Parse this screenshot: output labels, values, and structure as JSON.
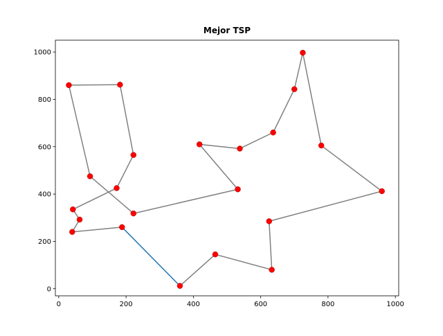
{
  "chart_data": {
    "type": "scatter",
    "title": "Mejor TSP",
    "xlabel": "",
    "ylabel": "",
    "xlim": [
      -10,
      1010
    ],
    "ylim": [
      -30,
      1050
    ],
    "xticks": [
      0,
      200,
      400,
      600,
      800,
      1000
    ],
    "yticks": [
      0,
      200,
      400,
      600,
      800,
      1000
    ],
    "xtick_labels": [
      "0",
      "200",
      "400",
      "600",
      "800",
      "1000"
    ],
    "ytick_labels": [
      "0",
      "200",
      "400",
      "600",
      "800",
      "1000"
    ],
    "grid": false,
    "points": [
      {
        "x": 30,
        "y": 860
      },
      {
        "x": 182,
        "y": 862
      },
      {
        "x": 222,
        "y": 565
      },
      {
        "x": 172,
        "y": 425
      },
      {
        "x": 42,
        "y": 335
      },
      {
        "x": 62,
        "y": 292
      },
      {
        "x": 40,
        "y": 240
      },
      {
        "x": 188,
        "y": 260
      },
      {
        "x": 360,
        "y": 12
      },
      {
        "x": 465,
        "y": 145
      },
      {
        "x": 633,
        "y": 80
      },
      {
        "x": 625,
        "y": 285
      },
      {
        "x": 960,
        "y": 412
      },
      {
        "x": 780,
        "y": 605
      },
      {
        "x": 725,
        "y": 997
      },
      {
        "x": 700,
        "y": 843
      },
      {
        "x": 637,
        "y": 660
      },
      {
        "x": 538,
        "y": 592
      },
      {
        "x": 418,
        "y": 610
      },
      {
        "x": 532,
        "y": 420
      },
      {
        "x": 222,
        "y": 318
      },
      {
        "x": 93,
        "y": 475
      }
    ],
    "tour": [
      0,
      1,
      2,
      3,
      4,
      5,
      6,
      7,
      8,
      9,
      10,
      11,
      12,
      13,
      14,
      15,
      16,
      17,
      18,
      19,
      20,
      21,
      0
    ],
    "highlight_edge": [
      7,
      8
    ],
    "colors": {
      "point": "#ff0000",
      "point_edge": "#8b0000",
      "path": "#808080",
      "highlight": "#1f77b4",
      "axis": "#000000"
    }
  }
}
